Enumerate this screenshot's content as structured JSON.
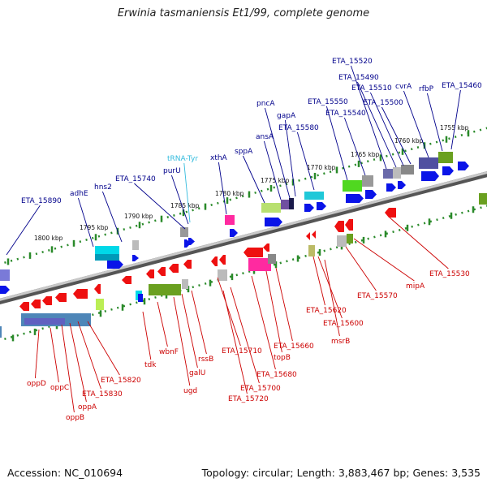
{
  "title": "Erwinia tasmaniensis Et1/99, complete genome",
  "accession": "Accession: NC_010694",
  "summary": "Topology: circular; Length: 3,883,467 bp; Genes: 3,535",
  "colors": {
    "forward_label": "#00008b",
    "reverse_label": "#cc0000",
    "trna_label": "#33bbdd",
    "backbone": "#9a9a9a",
    "tick": "#2a8a2a"
  },
  "scale_labels": [
    "1800 kbp",
    "1795 kbp",
    "1790 kbp",
    "1785 kbp",
    "1780 kbp",
    "1775 kbp",
    "1770 kbp",
    "1765 kbp",
    "1760 kbp",
    "1755 kbp"
  ],
  "forward_genes": [
    "ETA_15890",
    "adhE",
    "hns2",
    "ETA_15740",
    "purU",
    "tRNA-Tyr",
    "xthA",
    "sppA",
    "ansA",
    "pncA",
    "gapA",
    "ETA_15580",
    "ETA_15550",
    "ETA_15540",
    "ETA_15520",
    "ETA_15490",
    "ETA_15510",
    "ETA_15500",
    "cvrA",
    "rfbP",
    "ETA_15460"
  ],
  "reverse_genes": [
    "oppD",
    "oppC",
    "oppB",
    "oppA",
    "ETA_15830",
    "ETA_15820",
    "tdk",
    "wbnF",
    "ugd",
    "galU",
    "rssB",
    "ETA_15710",
    "ETA_15720",
    "ETA_15700",
    "ETA_15680",
    "topB",
    "ETA_15660",
    "ETA_15620",
    "ETA_15600",
    "msrB",
    "ETA_15570",
    "mipA",
    "ETA_15530"
  ]
}
